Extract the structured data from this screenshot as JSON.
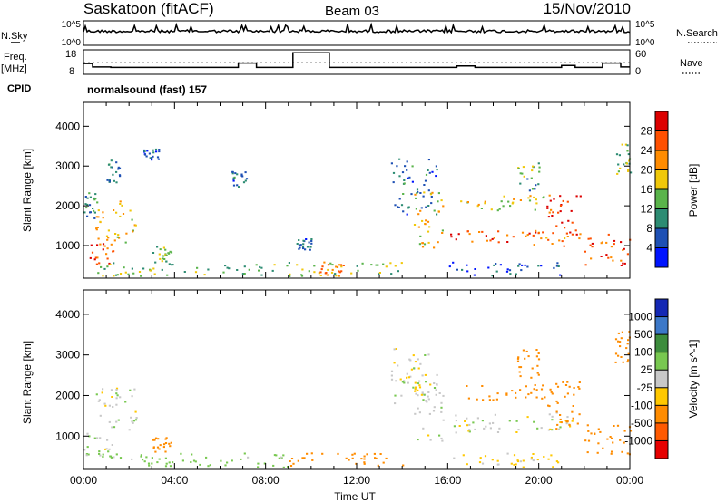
{
  "header": {
    "station": "Saskatoon (fitACF)",
    "beam": "Beam 03",
    "date": "15/Nov/2010"
  },
  "status_panel": {
    "left_label_top": "N.Sky",
    "left_label_freq_1": "Freq.",
    "left_label_freq_2": "[MHz]",
    "left_label_cpid": "CPID",
    "right_label_top": "N.Search",
    "right_label_nave": "Nave",
    "nsky_ticks": [
      "10^5",
      "10^0"
    ],
    "nsearch_ticks": [
      "10^5",
      "10^0"
    ],
    "freq_ticks": [
      "18",
      "8"
    ],
    "nave_ticks": [
      "60",
      "0"
    ],
    "cpid_text": "normalsound (fast) 157",
    "freq_mhz_steps": [
      {
        "start_h": 0.0,
        "end_h": 0.4,
        "value": 12.4
      },
      {
        "start_h": 0.4,
        "end_h": 1.2,
        "value": 11.0
      },
      {
        "start_h": 1.2,
        "end_h": 6.8,
        "value": 10.8
      },
      {
        "start_h": 6.8,
        "end_h": 7.6,
        "value": 12.6
      },
      {
        "start_h": 7.6,
        "end_h": 9.2,
        "value": 10.8
      },
      {
        "start_h": 9.2,
        "end_h": 10.8,
        "value": 16.8
      },
      {
        "start_h": 10.8,
        "end_h": 16.4,
        "value": 10.8
      },
      {
        "start_h": 16.4,
        "end_h": 17.2,
        "value": 11.4
      },
      {
        "start_h": 17.2,
        "end_h": 21.0,
        "value": 10.8
      },
      {
        "start_h": 21.0,
        "end_h": 21.6,
        "value": 11.6
      },
      {
        "start_h": 21.6,
        "end_h": 22.8,
        "value": 10.8
      },
      {
        "start_h": 22.8,
        "end_h": 23.6,
        "value": 12.6
      },
      {
        "start_h": 23.6,
        "end_h": 24.0,
        "value": 11.0
      }
    ],
    "nave_level": 28
  },
  "chart_data": [
    {
      "type": "heatmap",
      "name": "power",
      "ylabel": "Slant Range [km]",
      "xlim_hours": [
        0,
        24
      ],
      "ylim_km": [
        180,
        4600
      ],
      "y_ticks": [
        1000,
        2000,
        3000,
        4000
      ],
      "x_tick_hours": [
        0,
        4,
        8,
        12,
        16,
        20,
        24
      ],
      "colorbar": {
        "label": "Power [dB]",
        "tick_labels": [
          "4",
          "8",
          "12",
          "16",
          "20",
          "24",
          "28"
        ],
        "colors": [
          "#0014ff",
          "#1e50b4",
          "#2d8c73",
          "#5ab44b",
          "#f0c80a",
          "#ff8c00",
          "#ff5000",
          "#dc0000"
        ]
      },
      "regions": [
        {
          "t0": 0.0,
          "t1": 1.3,
          "r0": 500,
          "r1": 1100,
          "power": 26
        },
        {
          "t0": 0.0,
          "t1": 0.5,
          "r0": 1700,
          "r1": 2400,
          "power": 10
        },
        {
          "t0": 0.5,
          "t1": 2.3,
          "r0": 1100,
          "r1": 2200,
          "power": 20
        },
        {
          "t0": 1.0,
          "t1": 1.6,
          "r0": 2600,
          "r1": 3200,
          "power": 8
        },
        {
          "t0": 2.6,
          "t1": 3.3,
          "r0": 3150,
          "r1": 3450,
          "power": 6
        },
        {
          "t0": 3.0,
          "t1": 3.9,
          "r0": 600,
          "r1": 1000,
          "power": 14
        },
        {
          "t0": 6.5,
          "t1": 7.2,
          "r0": 2500,
          "r1": 2900,
          "power": 8
        },
        {
          "t0": 9.3,
          "t1": 10.0,
          "r0": 900,
          "r1": 1200,
          "power": 6
        },
        {
          "t0": 0.5,
          "t1": 14.0,
          "r0": 250,
          "r1": 600,
          "power": 14
        },
        {
          "t0": 10.3,
          "t1": 11.5,
          "r0": 250,
          "r1": 600,
          "power": 22
        },
        {
          "t0": 13.5,
          "t1": 15.5,
          "r0": 1800,
          "r1": 3200,
          "power": 8
        },
        {
          "t0": 14.5,
          "t1": 15.8,
          "r0": 900,
          "r1": 2400,
          "power": 18
        },
        {
          "t0": 16.0,
          "t1": 19.0,
          "r0": 1100,
          "r1": 1400,
          "power": 27
        },
        {
          "t0": 16.5,
          "t1": 20.5,
          "r0": 1900,
          "r1": 2300,
          "power": 17
        },
        {
          "t0": 19.2,
          "t1": 21.5,
          "r0": 1000,
          "r1": 1400,
          "power": 24
        },
        {
          "t0": 20.3,
          "t1": 21.8,
          "r0": 1200,
          "r1": 2400,
          "power": 27
        },
        {
          "t0": 22.0,
          "t1": 24.0,
          "r0": 500,
          "r1": 1300,
          "power": 26
        },
        {
          "t0": 19.0,
          "t1": 20.0,
          "r0": 2400,
          "r1": 3200,
          "power": 12
        },
        {
          "t0": 23.3,
          "t1": 24.0,
          "r0": 2800,
          "r1": 3600,
          "power": 14
        },
        {
          "t0": 16.0,
          "t1": 21.0,
          "r0": 250,
          "r1": 600,
          "power": 6
        }
      ]
    },
    {
      "type": "heatmap",
      "name": "velocity",
      "ylabel": "Slant Range [km]",
      "xlabel": "Time UT",
      "xlim_hours": [
        0,
        24
      ],
      "ylim_km": [
        180,
        4600
      ],
      "y_ticks": [
        1000,
        2000,
        3000,
        4000
      ],
      "x_tick_labels": [
        "00:00",
        "04:00",
        "08:00",
        "12:00",
        "16:00",
        "20:00",
        "00:00"
      ],
      "x_tick_hours": [
        0,
        4,
        8,
        12,
        16,
        20,
        24
      ],
      "colorbar": {
        "label": "Velocity [m s^-1]",
        "tick_labels": [
          "1000",
          "500",
          "100",
          "25",
          "-25",
          "-100",
          "-500",
          "-1000"
        ],
        "colors": [
          "#1428b4",
          "#3c78c8",
          "#3c8c3c",
          "#78c850",
          "#c8c8c8",
          "#ffc800",
          "#ff8c00",
          "#ff5a00",
          "#e60000"
        ]
      },
      "regions": [
        {
          "t0": 0.0,
          "t1": 1.3,
          "r0": 500,
          "r1": 1100,
          "velocity": 0
        },
        {
          "t0": 0.5,
          "t1": 2.3,
          "r0": 1100,
          "r1": 2200,
          "velocity": 0
        },
        {
          "t0": 3.0,
          "t1": 3.9,
          "r0": 600,
          "r1": 1000,
          "velocity": -150
        },
        {
          "t0": 0.5,
          "t1": 9.0,
          "r0": 250,
          "r1": 600,
          "velocity": 60
        },
        {
          "t0": 9.0,
          "t1": 14.0,
          "r0": 250,
          "r1": 600,
          "velocity": -150
        },
        {
          "t0": 13.5,
          "t1": 15.5,
          "r0": 1800,
          "r1": 3200,
          "velocity": 0
        },
        {
          "t0": 14.5,
          "t1": 15.8,
          "r0": 900,
          "r1": 2400,
          "velocity": 0
        },
        {
          "t0": 16.0,
          "t1": 21.5,
          "r0": 1100,
          "r1": 1600,
          "velocity": 0
        },
        {
          "t0": 16.5,
          "t1": 20.5,
          "r0": 1900,
          "r1": 2300,
          "velocity": -200
        },
        {
          "t0": 20.3,
          "t1": 21.8,
          "r0": 1200,
          "r1": 2400,
          "velocity": -300
        },
        {
          "t0": 22.0,
          "t1": 24.0,
          "r0": 500,
          "r1": 1300,
          "velocity": -300
        },
        {
          "t0": 19.0,
          "t1": 20.0,
          "r0": 2400,
          "r1": 3200,
          "velocity": -150
        },
        {
          "t0": 23.3,
          "t1": 24.0,
          "r0": 2800,
          "r1": 3600,
          "velocity": -150
        },
        {
          "t0": 16.0,
          "t1": 21.0,
          "r0": 250,
          "r1": 600,
          "velocity": -50
        }
      ]
    }
  ]
}
